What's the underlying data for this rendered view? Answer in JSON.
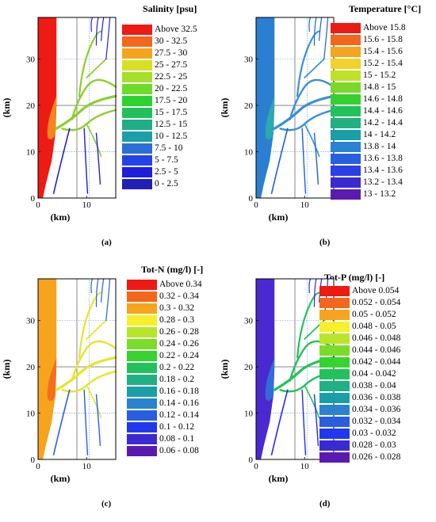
{
  "axes": {
    "xlabel": "(km)",
    "ylabel": "(km)",
    "x_ticks": [
      "0",
      "10"
    ],
    "y_ticks": [
      "0",
      "10",
      "20",
      "30"
    ]
  },
  "panels": [
    {
      "id": "a",
      "label": "(a)",
      "title": "Salinity [psu]",
      "sea_color": "#ee1a14",
      "near_color": "#f39a1e",
      "river_color": "#2222cc",
      "mid_color": "#8ccf2a",
      "legend": [
        {
          "label": "Above 32.5",
          "color": "#ee1a14"
        },
        {
          "label": "30 - 32.5",
          "color": "#f3661c"
        },
        {
          "label": "27.5 -   30",
          "color": "#f6a41d"
        },
        {
          "label": "25 - 27.5",
          "color": "#d7e022"
        },
        {
          "label": "22.5 -   25",
          "color": "#a5df2a"
        },
        {
          "label": "20 - 22.5",
          "color": "#6ddb2a"
        },
        {
          "label": "17.5 -   20",
          "color": "#2ed22e"
        },
        {
          "label": "15 - 17.5",
          "color": "#22c05a"
        },
        {
          "label": "12.5 -   15",
          "color": "#1fae86"
        },
        {
          "label": "10 - 12.5",
          "color": "#1a9ea8"
        },
        {
          "label": "7.5 -   10",
          "color": "#2a6fd4"
        },
        {
          "label": "5 -   7.5",
          "color": "#2442ea"
        },
        {
          "label": "2.5 -     5",
          "color": "#1e1ee0"
        },
        {
          "label": "0 -   2.5",
          "color": "#2020b8"
        }
      ]
    },
    {
      "id": "b",
      "label": "(b)",
      "title": "Temperature [°C]",
      "sea_color": "#2a7fd0",
      "near_color": "#2ab0a8",
      "river_color": "#1e5fd8",
      "mid_color": "#3a8fd6",
      "legend": [
        {
          "label": "Above 15.8",
          "color": "#ee1a14"
        },
        {
          "label": "15.6 - 15.8",
          "color": "#f3661c"
        },
        {
          "label": "15.4 - 15.6",
          "color": "#f6a41d"
        },
        {
          "label": "15.2 - 15.4",
          "color": "#f2d22a"
        },
        {
          "label": "15 - 15.2",
          "color": "#bfe12a"
        },
        {
          "label": "14.8 -    15",
          "color": "#7bd82a"
        },
        {
          "label": "14.6 - 14.8",
          "color": "#36d02e"
        },
        {
          "label": "14.4 - 14.6",
          "color": "#22c25a"
        },
        {
          "label": "14.2 - 14.4",
          "color": "#1fb083"
        },
        {
          "label": "14 - 14.2",
          "color": "#1a9ea8"
        },
        {
          "label": "13.8 -    14",
          "color": "#2a82d0"
        },
        {
          "label": "13.6 - 13.8",
          "color": "#2a5ee0"
        },
        {
          "label": "13.4 - 13.6",
          "color": "#2a3fe8"
        },
        {
          "label": "13.2 - 13.4",
          "color": "#3a2ad4"
        },
        {
          "label": "13 - 13.2",
          "color": "#5a1ab0"
        }
      ]
    },
    {
      "id": "c",
      "label": "(c)",
      "title": "Tot-N (mg/l) [-]",
      "sea_color": "#f6a41d",
      "near_color": "#f3661c",
      "river_color": "#2a5ee0",
      "mid_color": "#e8e42a",
      "legend": [
        {
          "label": "Above 0.34",
          "color": "#ee1a14"
        },
        {
          "label": "0.32 - 0.34",
          "color": "#f3661c"
        },
        {
          "label": "0.3 - 0.32",
          "color": "#f6a41d"
        },
        {
          "label": "0.28 -   0.3",
          "color": "#f6f02a"
        },
        {
          "label": "0.26 - 0.28",
          "color": "#b8e42a"
        },
        {
          "label": "0.24 - 0.26",
          "color": "#7bdc2a"
        },
        {
          "label": "0.22 - 0.24",
          "color": "#36d42e"
        },
        {
          "label": "0.2 - 0.22",
          "color": "#22c25a"
        },
        {
          "label": "0.18 -   0.2",
          "color": "#1fb083"
        },
        {
          "label": "0.16 - 0.18",
          "color": "#1a9ea8"
        },
        {
          "label": "0.14 - 0.16",
          "color": "#2a82d0"
        },
        {
          "label": "0.12 - 0.14",
          "color": "#2a5ee0"
        },
        {
          "label": "0.1 - 0.12",
          "color": "#2238ee"
        },
        {
          "label": "0.08 -   0.1",
          "color": "#3a2ad4"
        },
        {
          "label": "0.06 - 0.08",
          "color": "#5a1ab0"
        }
      ]
    },
    {
      "id": "d",
      "label": "(d)",
      "title": "Tot-P (mg/l) [-]",
      "sea_color": "#4a2ad0",
      "near_color": "#2a7ad8",
      "river_color": "#2a2ae0",
      "mid_color": "#22c25a",
      "legend": [
        {
          "label": "Above  0.054",
          "color": "#ee1a14"
        },
        {
          "label": "0.052 - 0.054",
          "color": "#f3661c"
        },
        {
          "label": "0.05 - 0.052",
          "color": "#f6a41d"
        },
        {
          "label": "0.048 -   0.05",
          "color": "#f6f02a"
        },
        {
          "label": "0.046 - 0.048",
          "color": "#b8e42a"
        },
        {
          "label": "0.044 - 0.046",
          "color": "#7bdc2a"
        },
        {
          "label": "0.042 - 0.044",
          "color": "#36d42e"
        },
        {
          "label": "0.04 - 0.042",
          "color": "#22c25a"
        },
        {
          "label": "0.038 -   0.04",
          "color": "#1fb083"
        },
        {
          "label": "0.036 - 0.038",
          "color": "#1a9ea8"
        },
        {
          "label": "0.034 - 0.036",
          "color": "#2a82d0"
        },
        {
          "label": "0.032 - 0.034",
          "color": "#2a5ee0"
        },
        {
          "label": "0.03 - 0.032",
          "color": "#2238ee"
        },
        {
          "label": "0.028 -   0.03",
          "color": "#3a2ad4"
        },
        {
          "label": "0.026 - 0.028",
          "color": "#5a1ab0"
        }
      ]
    }
  ]
}
